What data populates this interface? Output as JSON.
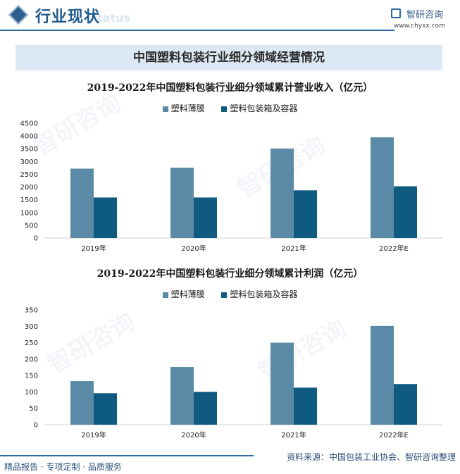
{
  "header": {
    "section_title": "行业现状",
    "section_ghost": "tatus",
    "brand_name": "智研咨询",
    "brand_url": "www.chyxx.com"
  },
  "banner_title": "中国塑料包装行业细分领域经营情况",
  "legend": [
    "塑料薄膜",
    "塑料包装箱及容器"
  ],
  "colors": {
    "series1": "#5b8aa6",
    "series2": "#0e5a80",
    "accent": "#2f6aa0"
  },
  "footer": {
    "left": "精品报告 · 专项定制 · 品质服务",
    "source": "资料来源：中国包装工业协会、智研咨询整理"
  },
  "watermark": "智研咨询",
  "chart_data": [
    {
      "type": "bar",
      "title": "2019-2022年中国塑料包装行业细分领域累计营业收入（亿元）",
      "categories": [
        "2019年",
        "2020年",
        "2021年",
        "2022年E"
      ],
      "series": [
        {
          "name": "塑料薄膜",
          "values": [
            2720,
            2760,
            3510,
            3950
          ]
        },
        {
          "name": "塑料包装箱及容器",
          "values": [
            1590,
            1590,
            1870,
            2030
          ]
        }
      ],
      "ylim": [
        0,
        4500
      ],
      "yticks": [
        0,
        500,
        1000,
        1500,
        2000,
        2500,
        3000,
        3500,
        4000,
        4500
      ],
      "legend_position": "top"
    },
    {
      "type": "bar",
      "title": "2019-2022年中国塑料包装行业细分领域累计利润（亿元）",
      "categories": [
        "2019年",
        "2020年",
        "2021年",
        "2022年E"
      ],
      "series": [
        {
          "name": "塑料薄膜",
          "values": [
            133,
            176,
            250,
            301
          ]
        },
        {
          "name": "塑料包装箱及容器",
          "values": [
            96,
            100,
            113,
            124
          ]
        }
      ],
      "ylim": [
        0,
        350
      ],
      "yticks": [
        0,
        50,
        100,
        150,
        200,
        250,
        300,
        350
      ],
      "legend_position": "top"
    }
  ]
}
